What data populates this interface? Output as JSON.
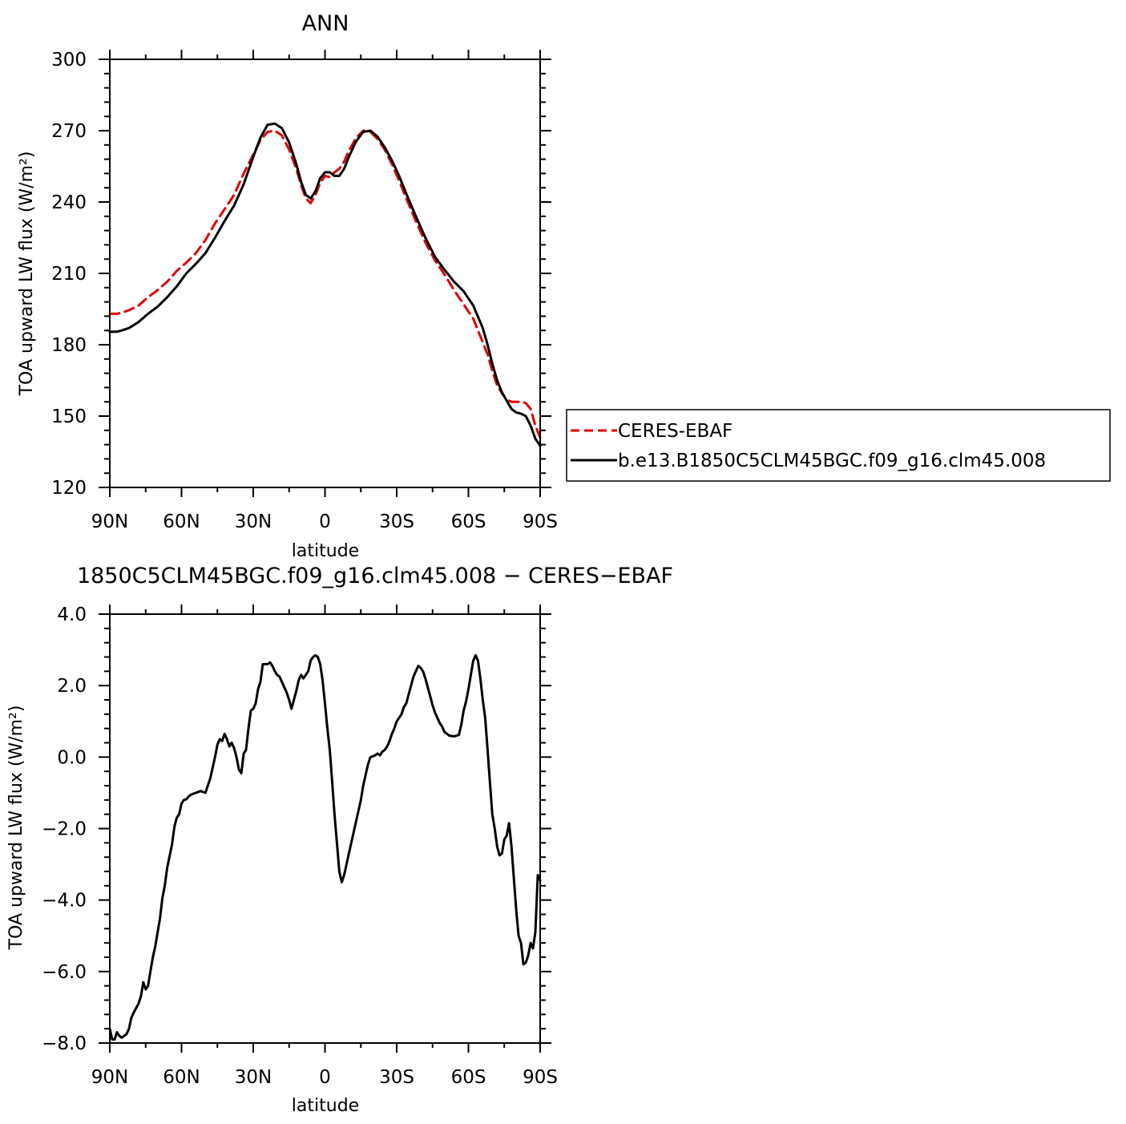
{
  "chart_data": [
    {
      "type": "line",
      "title": "ANN",
      "xlabel": "latitude",
      "ylabel": "TOA upward LW flux (W/m²)",
      "xlim": [
        90,
        -90
      ],
      "ylim": [
        120,
        300
      ],
      "x_ticks": [
        {
          "value": 90,
          "label": "90N"
        },
        {
          "value": 60,
          "label": "60N"
        },
        {
          "value": 30,
          "label": "30N"
        },
        {
          "value": 0,
          "label": "0"
        },
        {
          "value": -30,
          "label": "30S"
        },
        {
          "value": -60,
          "label": "60S"
        },
        {
          "value": -90,
          "label": "90S"
        }
      ],
      "y_ticks": [
        {
          "value": 120,
          "label": "120"
        },
        {
          "value": 150,
          "label": "150"
        },
        {
          "value": 180,
          "label": "180"
        },
        {
          "value": 210,
          "label": "210"
        },
        {
          "value": 240,
          "label": "240"
        },
        {
          "value": 270,
          "label": "270"
        },
        {
          "value": 300,
          "label": "300"
        }
      ],
      "grid": false,
      "legend_position": "right",
      "series": [
        {
          "name": "CERES-EBAF",
          "color": "#e00000",
          "dash": true,
          "x": [
            90,
            87,
            85,
            82,
            78,
            74,
            70,
            66,
            62,
            58,
            54,
            50,
            46,
            42,
            38,
            34,
            30,
            27,
            24,
            21,
            18,
            15,
            12,
            10,
            8,
            6,
            4,
            2,
            0,
            -2,
            -4,
            -6,
            -8,
            -10,
            -13,
            -16,
            -19,
            -22,
            -25,
            -28,
            -31,
            -34,
            -38,
            -42,
            -46,
            -50,
            -54,
            -58,
            -62,
            -66,
            -68,
            -70,
            -72,
            -74,
            -76,
            -78,
            -80,
            -82,
            -84,
            -86,
            -88,
            -90
          ],
          "y": [
            193,
            193,
            193.5,
            194.5,
            196.5,
            200,
            203,
            206.5,
            211,
            214.5,
            218.5,
            224,
            231,
            237,
            243,
            252,
            260,
            266,
            269.5,
            270,
            268,
            262,
            254,
            247,
            241.5,
            239.5,
            243,
            248,
            251,
            250.5,
            252.5,
            254,
            257,
            261.5,
            267,
            270,
            269.5,
            266.5,
            262,
            256,
            249,
            241.5,
            232,
            223,
            215.5,
            209.5,
            203,
            197,
            191,
            181,
            176,
            169,
            163,
            159.5,
            157,
            156,
            156,
            156,
            155.5,
            153,
            146,
            141
          ]
        },
        {
          "name": "b.e13.B1850C5CLM45BGC.f09_g16.clm45.008",
          "color": "#000000",
          "dash": false,
          "x": [
            90,
            87,
            85,
            82,
            78,
            74,
            70,
            66,
            62,
            58,
            54,
            50,
            46,
            42,
            38,
            34,
            30,
            27,
            24,
            21,
            18,
            15,
            12,
            10,
            8,
            6,
            4,
            2,
            0,
            -2,
            -4,
            -6,
            -8,
            -10,
            -13,
            -16,
            -19,
            -22,
            -25,
            -28,
            -31,
            -34,
            -38,
            -42,
            -46,
            -50,
            -54,
            -58,
            -62,
            -66,
            -68,
            -70,
            -72,
            -74,
            -76,
            -78,
            -80,
            -82,
            -84,
            -86,
            -88,
            -90
          ],
          "y": [
            185.5,
            185.5,
            186,
            187,
            189.5,
            193,
            196,
            200,
            204.5,
            210,
            214,
            218.5,
            225,
            232,
            238.5,
            247.5,
            259,
            267,
            272.5,
            273,
            271,
            265,
            256,
            248.5,
            243,
            241.5,
            244.5,
            250,
            252.5,
            252.5,
            251,
            251,
            254,
            259,
            265.5,
            269.5,
            270,
            267.5,
            263,
            257.5,
            251,
            243.5,
            234,
            225,
            217,
            211.5,
            206.5,
            202.5,
            196.5,
            187,
            180,
            172,
            165,
            160,
            156.5,
            153,
            151.5,
            151,
            150,
            146,
            140.5,
            137.5
          ]
        }
      ]
    },
    {
      "type": "line",
      "title": "1850C5CLM45BGC.f09_g16.clm45.008 − CERES−EBAF",
      "xlabel": "latitude",
      "ylabel": "TOA upward LW flux (W/m²)",
      "xlim": [
        90,
        -90
      ],
      "ylim": [
        -8.0,
        4.0
      ],
      "x_ticks": [
        {
          "value": 90,
          "label": "90N"
        },
        {
          "value": 60,
          "label": "60N"
        },
        {
          "value": 30,
          "label": "30N"
        },
        {
          "value": 0,
          "label": "0"
        },
        {
          "value": -30,
          "label": "30S"
        },
        {
          "value": -60,
          "label": "60S"
        },
        {
          "value": -90,
          "label": "90S"
        }
      ],
      "y_ticks": [
        {
          "value": -8.0,
          "label": "−8.0"
        },
        {
          "value": -6.0,
          "label": "−6.0"
        },
        {
          "value": -4.0,
          "label": "−4.0"
        },
        {
          "value": -2.0,
          "label": "−2.0"
        },
        {
          "value": 0.0,
          "label": "0.0"
        },
        {
          "value": 2.0,
          "label": "2.0"
        },
        {
          "value": 4.0,
          "label": "4.0"
        }
      ],
      "grid": false,
      "series": [
        {
          "color": "#000000",
          "dash": false,
          "x": [
            90,
            89,
            88,
            87,
            86,
            85,
            84,
            83,
            82,
            81,
            80,
            78,
            77,
            76,
            75,
            74,
            73,
            72,
            71,
            70,
            69,
            68,
            67,
            66,
            64,
            63,
            62,
            61,
            60,
            59,
            58,
            57,
            56,
            54,
            52,
            50,
            49,
            48,
            47,
            46,
            45,
            44,
            43,
            42,
            41,
            40,
            39,
            38,
            37,
            36,
            35,
            34,
            33,
            32,
            31,
            30,
            29,
            28,
            27,
            26,
            25,
            24,
            23,
            22,
            21,
            20,
            19,
            18,
            17,
            16,
            15,
            14,
            13,
            12,
            11,
            10,
            9,
            8,
            7,
            6,
            5,
            4,
            3,
            2,
            1,
            0,
            -1,
            -2,
            -3,
            -4,
            -5,
            -6,
            -7,
            -8,
            -9,
            -10,
            -11,
            -12,
            -13,
            -14,
            -15,
            -16,
            -17,
            -18,
            -19,
            -20,
            -21,
            -22,
            -23,
            -24,
            -25,
            -26,
            -27,
            -28,
            -29,
            -30,
            -31,
            -32,
            -33,
            -34,
            -35,
            -36,
            -37,
            -38,
            -39,
            -40,
            -41,
            -42,
            -43,
            -44,
            -45,
            -46,
            -47,
            -48,
            -49,
            -50,
            -52,
            -54,
            -55,
            -56,
            -57,
            -58,
            -59,
            -60,
            -61,
            -62,
            -63,
            -64,
            -65,
            -66,
            -67,
            -68,
            -69,
            -70,
            -71,
            -72,
            -73,
            -74,
            -75,
            -76,
            -77,
            -78,
            -79,
            -80,
            -81,
            -82,
            -83,
            -84,
            -85,
            -86,
            -87,
            -88,
            -89,
            -90
          ],
          "y": [
            -7.6,
            -7.9,
            -7.9,
            -7.7,
            -7.8,
            -7.85,
            -7.8,
            -7.75,
            -7.6,
            -7.3,
            -7.15,
            -6.9,
            -6.7,
            -6.3,
            -6.5,
            -6.4,
            -6.0,
            -5.6,
            -5.3,
            -4.9,
            -4.5,
            -3.95,
            -3.6,
            -3.1,
            -2.45,
            -1.95,
            -1.7,
            -1.6,
            -1.3,
            -1.2,
            -1.18,
            -1.1,
            -1.05,
            -1.0,
            -0.95,
            -1.0,
            -0.8,
            -0.6,
            -0.3,
            0.0,
            0.35,
            0.5,
            0.45,
            0.65,
            0.5,
            0.3,
            0.4,
            0.25,
            0.0,
            -0.35,
            -0.45,
            0.1,
            0.2,
            0.8,
            1.3,
            1.35,
            1.5,
            1.9,
            2.1,
            2.6,
            2.6,
            2.6,
            2.65,
            2.55,
            2.4,
            2.3,
            2.25,
            2.1,
            1.95,
            1.8,
            1.6,
            1.35,
            1.6,
            1.85,
            2.15,
            2.3,
            2.2,
            2.3,
            2.4,
            2.7,
            2.8,
            2.85,
            2.8,
            2.6,
            2.15,
            1.5,
            0.8,
            0.2,
            -0.7,
            -1.6,
            -2.4,
            -3.2,
            -3.5,
            -3.3,
            -3.0,
            -2.7,
            -2.4,
            -2.1,
            -1.8,
            -1.5,
            -1.2,
            -0.8,
            -0.5,
            -0.2,
            0.0,
            0.02,
            0.05,
            0.1,
            0.05,
            0.15,
            0.2,
            0.3,
            0.45,
            0.65,
            0.8,
            1.0,
            1.1,
            1.2,
            1.4,
            1.5,
            1.75,
            2.0,
            2.25,
            2.4,
            2.55,
            2.5,
            2.4,
            2.2,
            1.95,
            1.7,
            1.45,
            1.25,
            1.1,
            0.95,
            0.85,
            0.7,
            0.6,
            0.58,
            0.6,
            0.62,
            0.9,
            1.3,
            1.55,
            1.9,
            2.3,
            2.7,
            2.85,
            2.7,
            2.2,
            1.6,
            1.1,
            0.2,
            -0.7,
            -1.6,
            -2.0,
            -2.5,
            -2.75,
            -2.7,
            -2.3,
            -2.2,
            -1.85,
            -2.5,
            -3.4,
            -4.3,
            -5.0,
            -5.2,
            -5.8,
            -5.75,
            -5.55,
            -5.2,
            -5.35,
            -4.9,
            -3.3,
            -3.45
          ]
        }
      ]
    }
  ],
  "legend": {
    "entries": [
      {
        "label": "CERES-EBAF",
        "color": "#e00000",
        "dash": true
      },
      {
        "label": "b.e13.B1850C5CLM45BGC.f09_g16.clm45.008",
        "color": "#000000",
        "dash": false
      }
    ]
  }
}
